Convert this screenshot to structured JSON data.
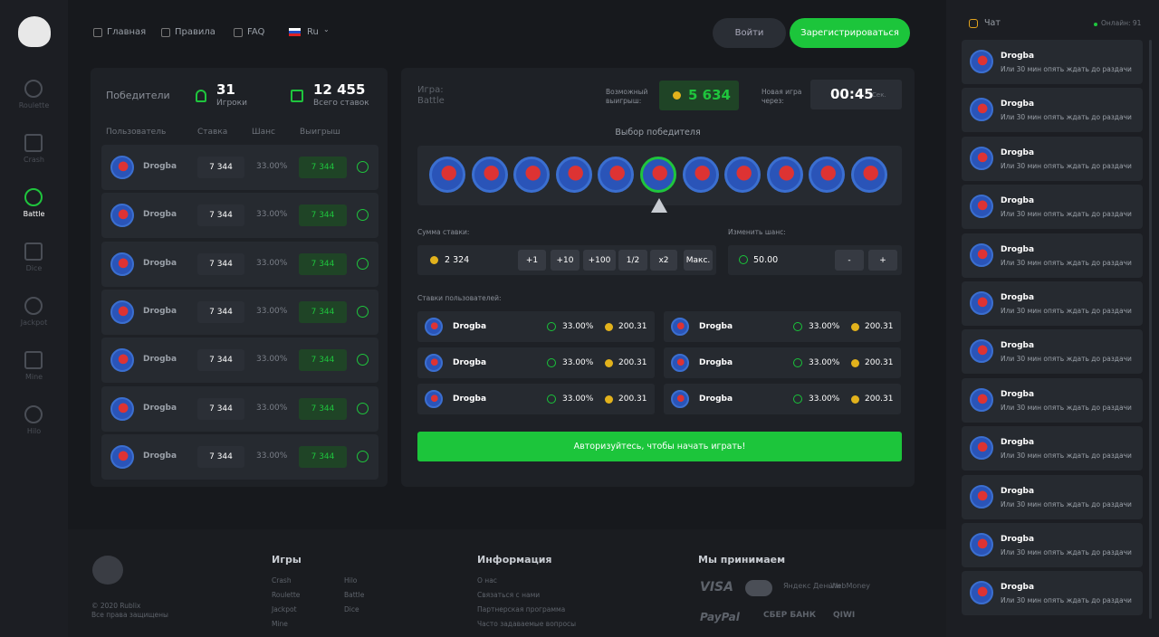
{
  "sidebar": {
    "items": [
      "Roulette",
      "Crash",
      "Battle",
      "Dice",
      "Jackpot",
      "Mine",
      "Hilo"
    ]
  },
  "nav": {
    "links": [
      "Главная",
      "Правила",
      "FAQ"
    ],
    "lang": "Ru",
    "login": "Войти",
    "register": "Зарегистрироваться"
  },
  "winners": {
    "label": "Победители",
    "players_count": "31",
    "players_label": "Игроки",
    "bets_count": "12 455",
    "bets_label": "Всего ставок",
    "columns": [
      "Пользователь",
      "Ставка",
      "Шанс",
      "Выигрыш"
    ],
    "rows": [
      {
        "user": "Drogba",
        "bet": "7 344",
        "chance": "33.00%",
        "win": "7 344"
      },
      {
        "user": "Drogba",
        "bet": "7 344",
        "chance": "33.00%",
        "win": "7 344"
      },
      {
        "user": "Drogba",
        "bet": "7 344",
        "chance": "33.00%",
        "win": "7 344"
      },
      {
        "user": "Drogba",
        "bet": "7 344",
        "chance": "33.00%",
        "win": "7 344"
      },
      {
        "user": "Drogba",
        "bet": "7 344",
        "chance": "33.00%",
        "win": "7 344"
      },
      {
        "user": "Drogba",
        "bet": "7 344",
        "chance": "33.00%",
        "win": "7 344"
      },
      {
        "user": "Drogba",
        "bet": "7 344",
        "chance": "33.00%",
        "win": "7 344"
      }
    ]
  },
  "game": {
    "label": "Игра:",
    "name": "Battle",
    "possible_win_label": "Возможный выигрыш:",
    "possible_win": "5 634",
    "next_game_label": "Новая игра через:",
    "timer": "00:45",
    "timer_unit": "Сек.",
    "winner_pick": "Выбор победителя",
    "bet_sum_label": "Сумма ставки:",
    "bet_sum": "2 324",
    "bet_buttons": [
      "+1",
      "+10",
      "+100",
      "1/2",
      "x2",
      "Макс."
    ],
    "chance_label": "Изменить шанс:",
    "chance": "50.00",
    "chance_buttons": [
      "-",
      "+"
    ],
    "user_bets_label": "Ставки пользователей:",
    "user_bets": [
      {
        "user": "Drogba",
        "chance": "33.00%",
        "amount": "200.31"
      },
      {
        "user": "Drogba",
        "chance": "33.00%",
        "amount": "200.31"
      },
      {
        "user": "Drogba",
        "chance": "33.00%",
        "amount": "200.31"
      },
      {
        "user": "Drogba",
        "chance": "33.00%",
        "amount": "200.31"
      },
      {
        "user": "Drogba",
        "chance": "33.00%",
        "amount": "200.31"
      },
      {
        "user": "Drogba",
        "chance": "33.00%",
        "amount": "200.31"
      }
    ],
    "cta": "Авторизуйтесь, чтобы начать играть!"
  },
  "chat": {
    "title": "Чат",
    "online": "Онлайн: 91",
    "messages": [
      {
        "user": "Drogba",
        "text": "Или 30 мин опять ждать до раздачи"
      },
      {
        "user": "Drogba",
        "text": "Или 30 мин опять ждать до раздачи"
      },
      {
        "user": "Drogba",
        "text": "Или 30 мин опять ждать до раздачи"
      },
      {
        "user": "Drogba",
        "text": "Или 30 мин опять ждать до раздачи"
      },
      {
        "user": "Drogba",
        "text": "Или 30 мин опять ждать до раздачи"
      },
      {
        "user": "Drogba",
        "text": "Или 30 мин опять ждать до раздачи"
      },
      {
        "user": "Drogba",
        "text": "Или 30 мин опять ждать до раздачи"
      },
      {
        "user": "Drogba",
        "text": "Или 30 мин опять ждать до раздачи"
      },
      {
        "user": "Drogba",
        "text": "Или 30 мин опять ждать до раздачи"
      },
      {
        "user": "Drogba",
        "text": "Или 30 мин опять ждать до раздачи"
      },
      {
        "user": "Drogba",
        "text": "Или 30 мин опять ждать до раздачи"
      },
      {
        "user": "Drogba",
        "text": "Или 30 мин опять ждать до раздачи"
      }
    ]
  },
  "footer": {
    "copyright": "© 2020 Rublix",
    "rights": "Все права защищены",
    "games_title": "Игры",
    "games": [
      "Crash",
      "Roulette",
      "Jackpot",
      "Mine",
      "Hilo",
      "Battle",
      "Dice"
    ],
    "info_title": "Информация",
    "info": [
      "О нас",
      "Связаться с нами",
      "Партнерская программа",
      "Часто задаваемые вопросы"
    ],
    "pay_title": "Мы принимаем",
    "payments": [
      "VISA",
      "Яндекс Деньги",
      "WebMoney",
      "PayPal",
      "СБЕР БАНК",
      "QIWI"
    ]
  }
}
